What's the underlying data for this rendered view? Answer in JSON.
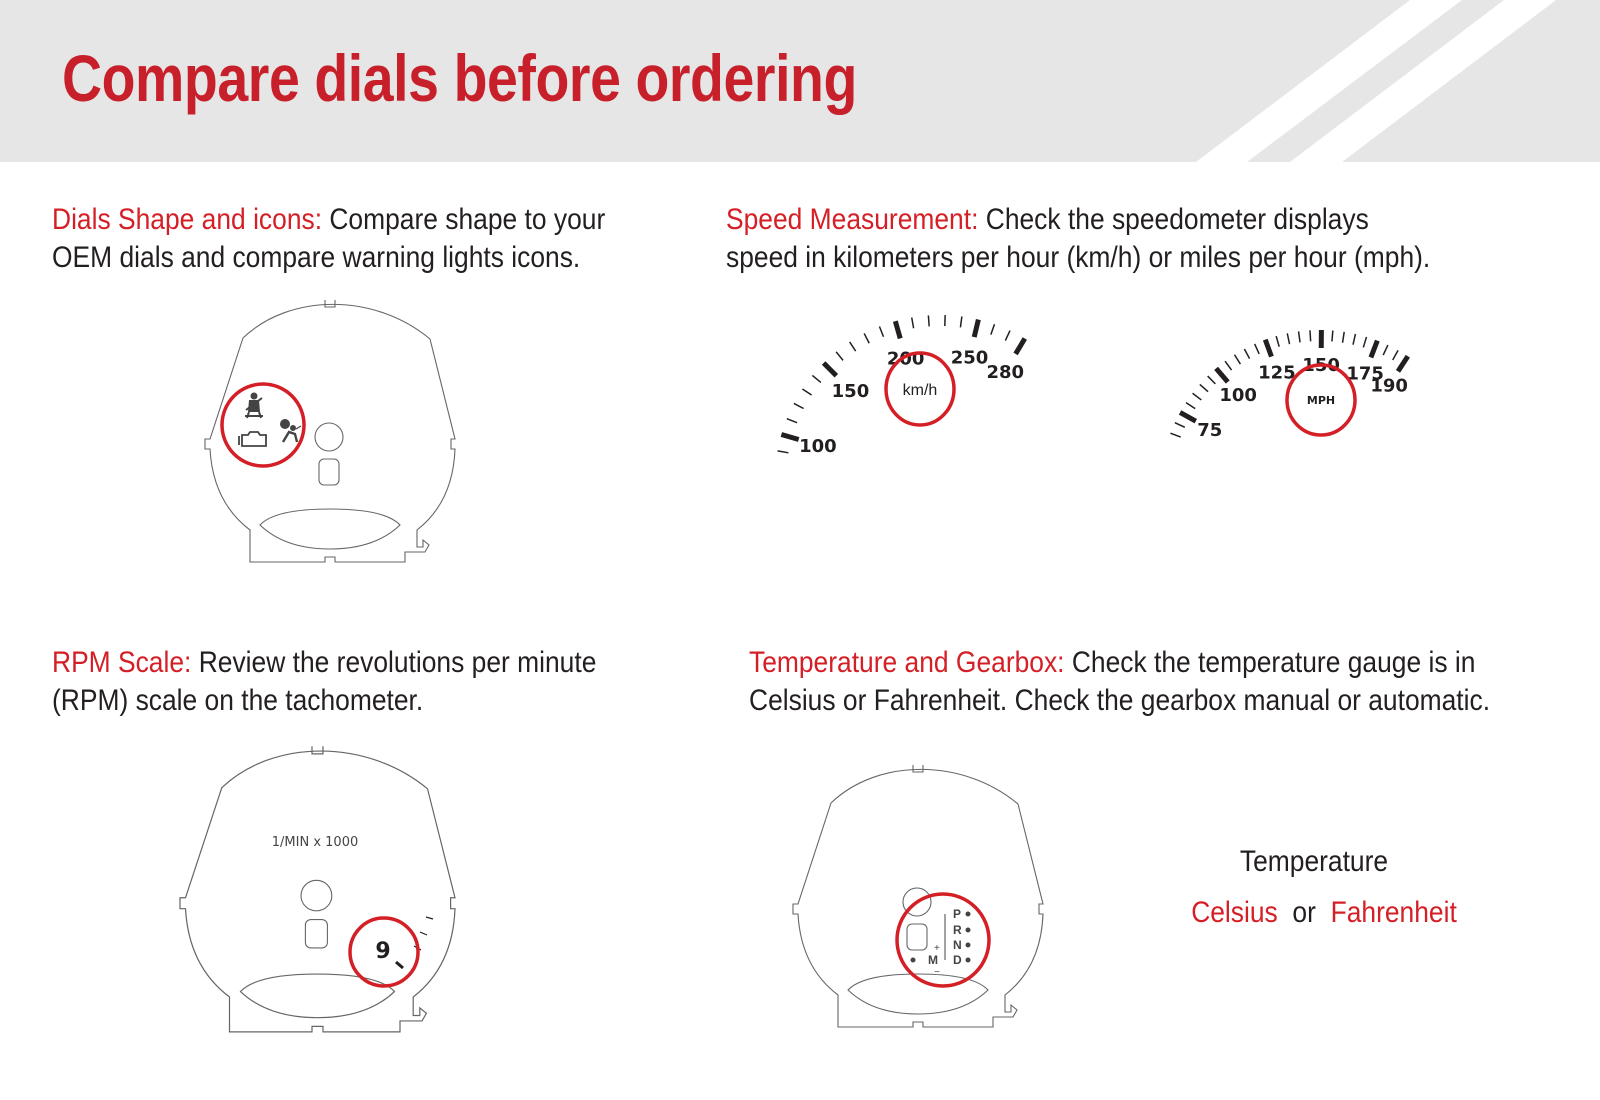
{
  "header": {
    "title": "Compare dials before ordering"
  },
  "colors": {
    "accent": "#d51f26",
    "header_bg": "#e6e6e6",
    "text": "#231f20",
    "outline": "#666666"
  },
  "sections": {
    "shape": {
      "heading": "Dials Shape and icons:",
      "line1": " Compare shape to your",
      "line2": "OEM dials and compare warning lights icons.",
      "icons": [
        "seatbelt-icon",
        "check-engine-icon",
        "airbag-icon"
      ]
    },
    "speed": {
      "heading": "Speed Measurement:",
      "line1": " Check the speedometer displays",
      "line2": "speed in kilometers per hour (km/h) or miles per hour (mph).",
      "kmh": {
        "unit": "km/h",
        "labels": [
          "100",
          "150",
          "200",
          "250",
          "280"
        ]
      },
      "mph": {
        "unit": "MPH",
        "labels": [
          "75",
          "100",
          "125",
          "150",
          "175",
          "190"
        ]
      }
    },
    "rpm": {
      "heading": "RPM Scale:",
      "line1": " Review the revolutions per minute",
      "line2": "(RPM) scale on the tachometer.",
      "scale_label": "1/MIN x 1000",
      "max_digit": "9"
    },
    "temp": {
      "heading": "Temperature and Gearbox:",
      "line1": "  Check the temperature gauge is in",
      "line2": "Celsius or Fahrenheit. Check the gearbox manual or automatic.",
      "gears": [
        "P",
        "R",
        "N",
        "D"
      ],
      "manual": "M",
      "plus": "+",
      "minus": "−",
      "temperature_label": "Temperature",
      "celsius": "Celsius",
      "or": "or",
      "fahrenheit": "Fahrenheit"
    }
  }
}
